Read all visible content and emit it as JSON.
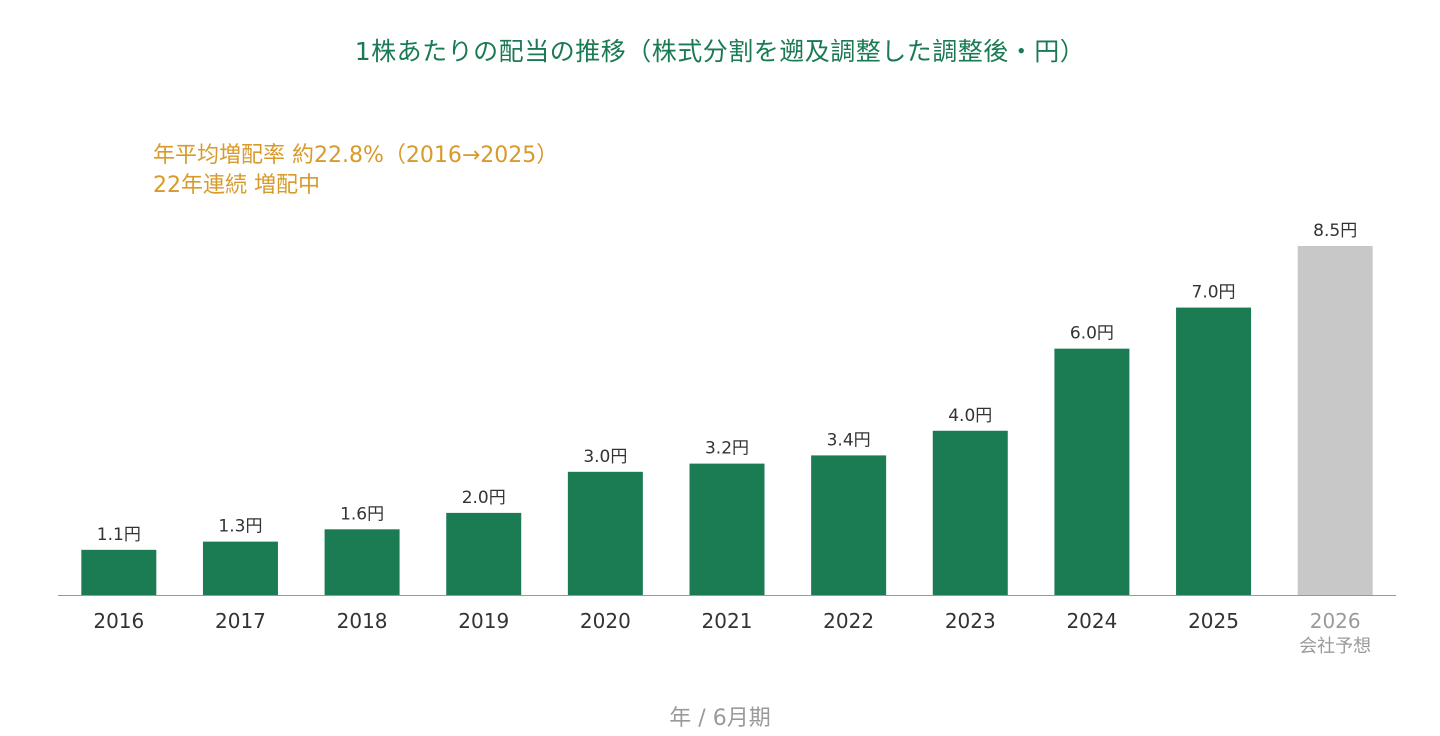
{
  "title": "1株あたりの配当の推移（株式分割を遡及調整した調整後・円）",
  "notes": {
    "line1": "年平均増配率 約22.8%（2016→2025）",
    "line2": "22年連続 増配中"
  },
  "colors": {
    "actual": "#1b7c54",
    "forecast": "#c8c8c8",
    "title": "#1a7a53",
    "note": "#d89a2b",
    "axis": "#999999",
    "label": "#333333",
    "forecast_label": "#9a9a9a"
  },
  "chart_data": {
    "type": "bar",
    "categories": [
      "2016",
      "2017",
      "2018",
      "2019",
      "2020",
      "2021",
      "2022",
      "2023",
      "2024",
      "2025",
      "2026"
    ],
    "category_sublabels": [
      "",
      "",
      "",
      "",
      "",
      "",
      "",
      "",
      "",
      "",
      "会社予想"
    ],
    "values": [
      1.1,
      1.3,
      1.6,
      2.0,
      3.0,
      3.2,
      3.4,
      4.0,
      6.0,
      7.0,
      8.5
    ],
    "value_labels": [
      "1.1円",
      "1.3円",
      "1.6円",
      "2.0円",
      "3.0円",
      "3.2円",
      "3.4円",
      "4.0円",
      "6.0円",
      "7.0円",
      "8.5円"
    ],
    "forecast": [
      false,
      false,
      false,
      false,
      false,
      false,
      false,
      false,
      false,
      false,
      true
    ],
    "title": "1株あたりの配当の推移（株式分割を遡及調整した調整後・円）",
    "xlabel": "年 / 6月期",
    "ylabel": "",
    "ylim": [
      0,
      8.5
    ],
    "grid": false,
    "legend": "none"
  }
}
